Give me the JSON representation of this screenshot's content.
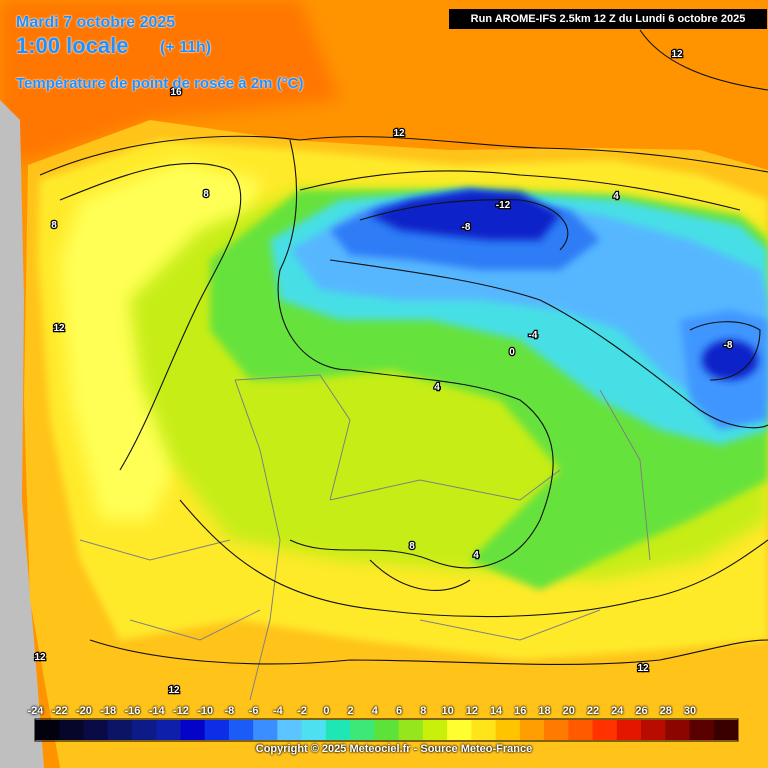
{
  "header": {
    "date": "Mardi 7 octobre 2025",
    "hour": "1:00 locale",
    "lead": "(+ 11h)",
    "parameter": "Température de point de rosée à 2m (°C)",
    "run": "Run AROME-IFS 2.5km 12 Z du Lundi 6 octobre 2025"
  },
  "contour_labels": [
    "12",
    "12",
    "16",
    "8",
    "8",
    "12",
    "-12",
    "-8",
    "-4",
    "0",
    "4",
    "-8",
    "8",
    "4",
    "12",
    "12",
    "12",
    "4"
  ],
  "legend": {
    "ticks": [
      "-24",
      "-22",
      "-20",
      "-18",
      "-16",
      "-14",
      "-12",
      "-10",
      "-8",
      "-6",
      "-4",
      "-2",
      "0",
      "2",
      "4",
      "6",
      "8",
      "10",
      "12",
      "14",
      "16",
      "18",
      "20",
      "22",
      "24",
      "26",
      "28",
      "30"
    ],
    "colors": [
      "#02020e",
      "#06062a",
      "#0a0a46",
      "#0c1466",
      "#0d1b89",
      "#0e20ab",
      "#0404c9",
      "#0c2ee6",
      "#1a5cf5",
      "#3a8eff",
      "#5cc4ff",
      "#4de0f0",
      "#1ee6b4",
      "#3ce878",
      "#5de23a",
      "#96e61e",
      "#c8f00a",
      "#ffff30",
      "#ffe41a",
      "#ffc400",
      "#ff9e00",
      "#ff7a00",
      "#ff5a00",
      "#ff3200",
      "#e41600",
      "#b80c00",
      "#8c0600",
      "#5a0000",
      "#3a0000"
    ]
  },
  "copyright": "Copyright © 2025 Meteociel.fr - Source Meteo-France",
  "colors": {
    "sea": "#ff9400",
    "land_outside": "#bfbfbf",
    "header_text": "#1e90ff"
  }
}
